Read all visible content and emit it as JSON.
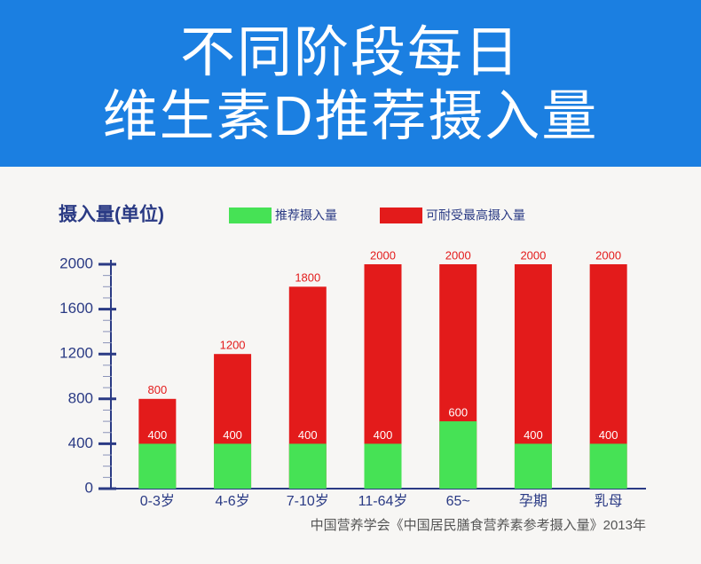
{
  "chart_data": {
    "type": "bar",
    "title": [
      "不同阶段每日",
      "维生素D推荐摄入量"
    ],
    "y_label": "摄入量(单位)",
    "categories": [
      "0-3岁",
      "4-6岁",
      "7-10岁",
      "11-64岁",
      "65~",
      "孕期",
      "乳母"
    ],
    "series": [
      {
        "name": "推荐摄入量",
        "color": "#46e255",
        "values": [
          400,
          400,
          400,
          400,
          600,
          400,
          400
        ]
      },
      {
        "name": "可耐受最高摄入量",
        "color": "#e31b1b",
        "values": [
          800,
          1200,
          1800,
          2000,
          2000,
          2000,
          2000
        ]
      }
    ],
    "overlap": true,
    "ylim": [
      0,
      2000
    ],
    "yticks": [
      0,
      400,
      800,
      1200,
      1600,
      2000
    ],
    "yminorticks": [
      100,
      200,
      300,
      500,
      600,
      700,
      900,
      1000,
      1100,
      1300,
      1400,
      1500,
      1700,
      1800,
      1900
    ],
    "source": "中国营养学会《中国居民膳食营养素参考摄入量》2013年"
  }
}
